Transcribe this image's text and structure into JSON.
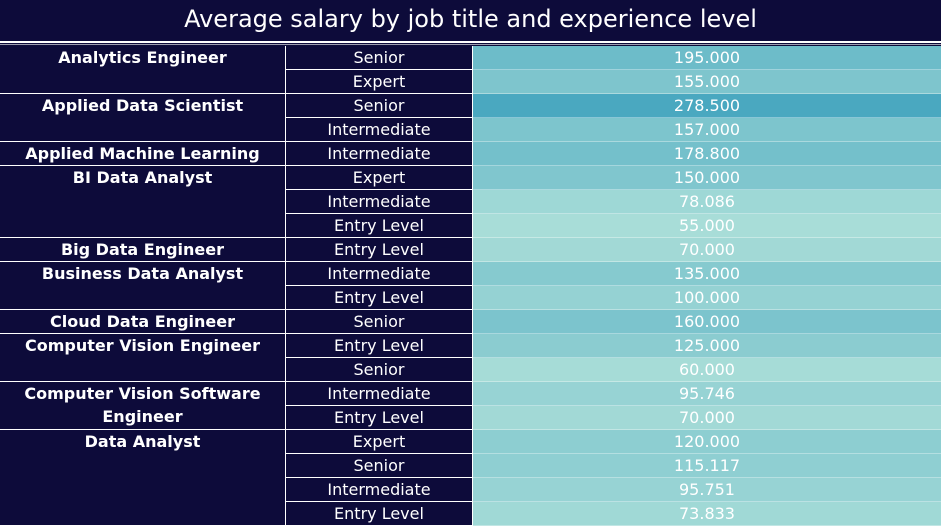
{
  "chart_data": {
    "type": "table",
    "title": "Average salary by job title and experience level",
    "groups": [
      {
        "job_title": "Analytics Engineer",
        "rows": [
          {
            "experience": "Senior",
            "value": "195.000",
            "salary": 195000
          },
          {
            "experience": "Expert",
            "value": "155.000",
            "salary": 155000
          }
        ]
      },
      {
        "job_title": "Applied Data Scientist",
        "rows": [
          {
            "experience": "Senior",
            "value": "278.500",
            "salary": 278500
          },
          {
            "experience": "Intermediate",
            "value": "157.000",
            "salary": 157000
          }
        ]
      },
      {
        "job_title": "Applied Machine Learning Scienti..",
        "rows": [
          {
            "experience": "Intermediate",
            "value": "178.800",
            "salary": 178800
          }
        ]
      },
      {
        "job_title": "BI Data Analyst",
        "rows": [
          {
            "experience": "Expert",
            "value": "150.000",
            "salary": 150000
          },
          {
            "experience": "Intermediate",
            "value": "78.086",
            "salary": 78086
          },
          {
            "experience": "Entry Level",
            "value": "55.000",
            "salary": 55000
          }
        ]
      },
      {
        "job_title": "Big Data Engineer",
        "rows": [
          {
            "experience": "Entry Level",
            "value": "70.000",
            "salary": 70000
          }
        ]
      },
      {
        "job_title": "Business Data Analyst",
        "rows": [
          {
            "experience": "Intermediate",
            "value": "135.000",
            "salary": 135000
          },
          {
            "experience": "Entry Level",
            "value": "100.000",
            "salary": 100000
          }
        ]
      },
      {
        "job_title": "Cloud Data Engineer",
        "rows": [
          {
            "experience": "Senior",
            "value": "160.000",
            "salary": 160000
          }
        ]
      },
      {
        "job_title": "Computer Vision Engineer",
        "rows": [
          {
            "experience": "Entry Level",
            "value": "125.000",
            "salary": 125000
          },
          {
            "experience": "Senior",
            "value": "60.000",
            "salary": 60000
          }
        ]
      },
      {
        "job_title": "Computer Vision Software Engineer",
        "rows": [
          {
            "experience": "Intermediate",
            "value": "95.746",
            "salary": 95746
          },
          {
            "experience": "Entry Level",
            "value": "70.000",
            "salary": 70000
          }
        ]
      },
      {
        "job_title": "Data Analyst",
        "rows": [
          {
            "experience": "Expert",
            "value": "120.000",
            "salary": 120000
          },
          {
            "experience": "Senior",
            "value": "115.117",
            "salary": 115117
          },
          {
            "experience": "Intermediate",
            "value": "95.751",
            "salary": 95751
          },
          {
            "experience": "Entry Level",
            "value": "73.833",
            "salary": 73833
          }
        ]
      }
    ],
    "color_scale": {
      "low": "#a8ddd8",
      "high": "#4aa8c0"
    }
  },
  "colors": {
    "background": "#0d0b3a",
    "text": "#ffffff"
  }
}
